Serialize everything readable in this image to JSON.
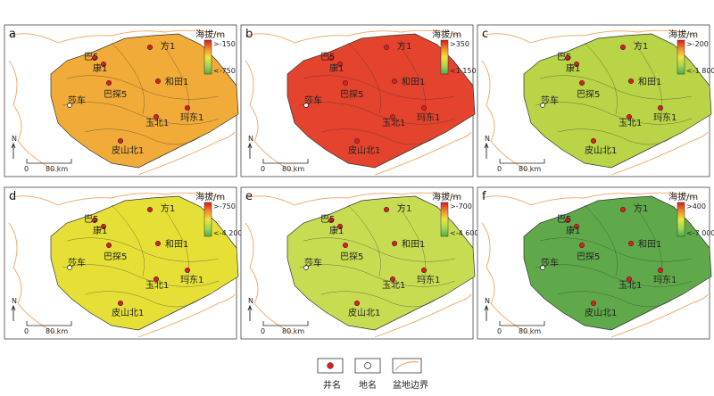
{
  "panels": [
    {
      "id": "a",
      "scale_title": "海拔/m",
      "scale_max": ">-150",
      "scale_min": "<-750",
      "base": "#f1ab38",
      "labels": {
        "well_1": "方1",
        "well_2": "巴5",
        "well_3": "康1",
        "well_4": "巴探5",
        "well_5": "和田1",
        "well_6": "玉北1",
        "well_7": "玛东1",
        "well_8": "皮山北1",
        "place": "莎车"
      }
    },
    {
      "id": "b",
      "scale_title": "海拔/m",
      "scale_max": ">350",
      "scale_min": "<1 150",
      "base": "#e4432d",
      "labels": {
        "well_1": "方1",
        "well_2": "巴5",
        "well_3": "康1",
        "well_4": "巴探5",
        "well_5": "和田1",
        "well_6": "玉北1",
        "well_7": "玛东1",
        "well_8": "皮山北1",
        "place": "莎车"
      }
    },
    {
      "id": "c",
      "scale_title": "海拔/m",
      "scale_max": ">-200",
      "scale_min": "<-1 800",
      "base": "#b9d446",
      "labels": {
        "well_1": "方1",
        "well_2": "巴5",
        "well_3": "康1",
        "well_4": "巴探5",
        "well_5": "和田1",
        "well_6": "玉北1",
        "well_7": "玛东1",
        "well_8": "皮山北1",
        "place": "莎车"
      }
    },
    {
      "id": "d",
      "scale_title": "海拔/m",
      "scale_max": ">-750",
      "scale_min": "<-4 200",
      "base": "#e6e036",
      "labels": {
        "well_1": "方1",
        "well_2": "巴5",
        "well_3": "康1",
        "well_4": "巴探5",
        "well_5": "和田1",
        "well_6": "玉北1",
        "well_7": "玛东1",
        "well_8": "皮山北1",
        "place": "莎车"
      }
    },
    {
      "id": "e",
      "scale_title": "海拔/m",
      "scale_max": ">-700",
      "scale_min": "<-4 600",
      "base": "#c8dc52",
      "labels": {
        "well_1": "方1",
        "well_2": "巴5",
        "well_3": "康1",
        "well_4": "巴探5",
        "well_5": "和田1",
        "well_6": "玉北1",
        "well_7": "玛东1",
        "well_8": "皮山北1",
        "place": "莎车"
      }
    },
    {
      "id": "f",
      "scale_title": "海拔/m",
      "scale_max": ">400",
      "scale_min": "<-7 000",
      "base": "#5fa94a",
      "labels": {
        "well_1": "方1",
        "well_2": "巴5",
        "well_3": "康1",
        "well_4": "巴探5",
        "well_5": "和田1",
        "well_6": "玉北1",
        "well_7": "玛东1",
        "well_8": "皮山北1",
        "place": "莎车"
      }
    }
  ],
  "north": "N",
  "scale_bar": {
    "zero": "0",
    "dist": "80 km"
  },
  "legend": {
    "well": "井名",
    "place": "地名",
    "boundary": "盆地边界"
  },
  "colors": {
    "boundary": "#f3a25f",
    "well_fill": "#d92020",
    "scale_hi": "#d7191c",
    "scale_mid": "#f0e442",
    "scale_lo": "#4daf4a",
    "frame": "#444"
  }
}
